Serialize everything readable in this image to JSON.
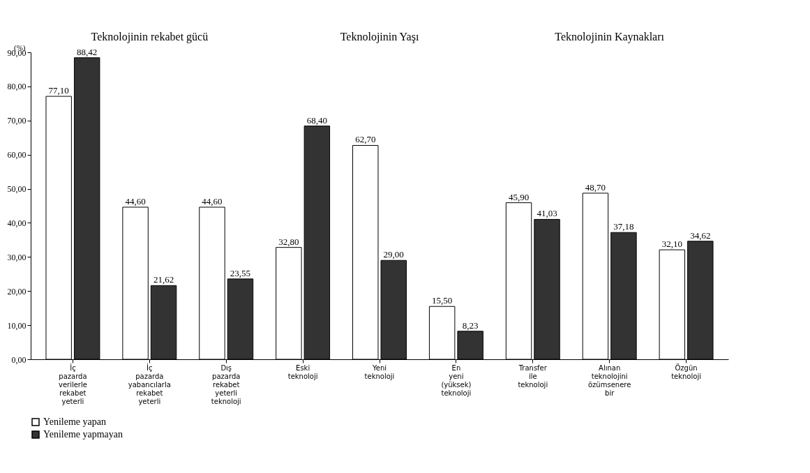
{
  "chart_data": {
    "type": "bar",
    "ylabel": "(%)",
    "categories": [
      "İç pazarda verilerle rekabet yeterli",
      "İç pazarda yabancılarla rekabet yeterli",
      "Dış pazarda rekabet yeterli teknoloji",
      "Eski teknoloji",
      "Yeni teknoloji",
      "En yeni (yüksek) teknoloji",
      "Transfer ile teknoloji",
      "Alınan teknolojini özümsenere bir",
      "Özgün teknoloji"
    ],
    "series": [
      {
        "name": "Yenileme yapan",
        "color": "#ffffff",
        "values": [
          77.1,
          44.6,
          44.6,
          32.8,
          62.7,
          15.5,
          45.9,
          48.7,
          32.1
        ],
        "value_labels": [
          "77,10",
          "44,60",
          "44,60",
          "32,80",
          "62,70",
          "15,50",
          "45,90",
          "48,70",
          "32,10"
        ]
      },
      {
        "name": "Yenileme yapmayan",
        "color": "#333333",
        "values": [
          88.42,
          21.62,
          23.55,
          68.4,
          29.0,
          8.23,
          41.03,
          37.18,
          34.62
        ],
        "value_labels": [
          "88,42",
          "21,62",
          "23,55",
          "68,40",
          "29,00",
          "8,23",
          "41,03",
          "37,18",
          "34,62"
        ]
      }
    ],
    "ylim": [
      0,
      90
    ],
    "yticks": [
      {
        "value": 0,
        "label": "0,00"
      },
      {
        "value": 10,
        "label": "10,00"
      },
      {
        "value": 20,
        "label": "20,00"
      },
      {
        "value": 30,
        "label": "30,00"
      },
      {
        "value": 40,
        "label": "40,00"
      },
      {
        "value": 50,
        "label": "50,00"
      },
      {
        "value": 60,
        "label": "60,00"
      },
      {
        "value": 70,
        "label": "70,00"
      },
      {
        "value": 80,
        "label": "80,00"
      },
      {
        "value": 90,
        "label": "90,00"
      }
    ],
    "annotations": [
      "Teknolojinin rekabet gücü",
      "Teknolojinin Yaşı",
      "Teknolojinin Kaynakları"
    ],
    "legend": "bottom",
    "grid": false
  }
}
